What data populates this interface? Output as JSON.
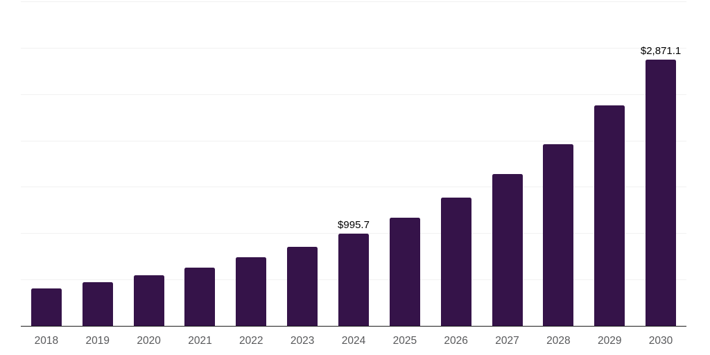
{
  "chart_data": {
    "type": "bar",
    "title": "",
    "xlabel": "",
    "ylabel": "",
    "categories": [
      "2018",
      "2019",
      "2020",
      "2021",
      "2022",
      "2023",
      "2024",
      "2025",
      "2026",
      "2027",
      "2028",
      "2029",
      "2030"
    ],
    "values": [
      407,
      472,
      547,
      632,
      737,
      855,
      995.7,
      1170,
      1385,
      1640,
      1960,
      2375,
      2871.1
    ],
    "data_labels": {
      "2024": "$995.7",
      "2030": "$2,871.1"
    },
    "ylim": [
      0,
      3500
    ],
    "gridline_step": 500,
    "grid": true,
    "legend": false,
    "y_axis_labels_visible": false,
    "colors": {
      "bar": "#351349",
      "gridline": "#f1f1f1",
      "axis_line": "#1d1d1d",
      "data_label": "#000000",
      "tick_label": "#58595b",
      "background": "#ffffff"
    }
  }
}
